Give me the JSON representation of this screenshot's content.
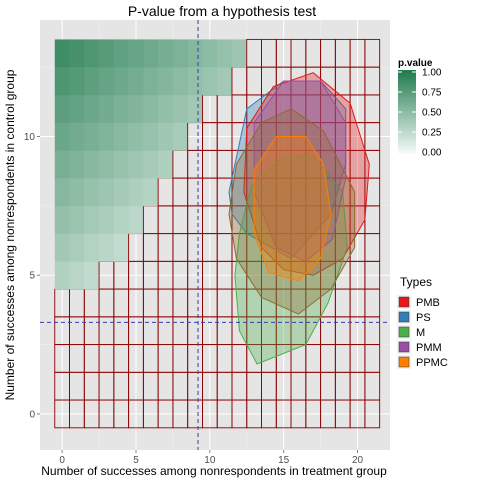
{
  "chart_data": {
    "type": "heatmap",
    "title": "P-value from a hypothesis test",
    "xlabel": "Number of successes among nonrespondents in treatment group",
    "ylabel": "Number of successes among nonrespondents in control group",
    "xlim": [
      -1.5,
      22.2
    ],
    "ylim": [
      -1.3,
      14.2
    ],
    "x_ticks": [
      0,
      5,
      10,
      15,
      20
    ],
    "y_ticks": [
      0,
      5,
      10
    ],
    "grid": true,
    "reference_lines": {
      "x": 9.2,
      "y": 3.3,
      "color": "#3b3bb4",
      "style": "dashed"
    },
    "colorbar": {
      "title": "p.value",
      "ticks": [
        "1.00",
        "0.75",
        "0.50",
        "0.25",
        "0.00"
      ],
      "low_color": "#f7fbf9",
      "high_color": "#1f7a4c",
      "placement": "right"
    },
    "legend": {
      "title": "Types",
      "placement": "right",
      "items": [
        {
          "label": "PMB",
          "color": "#e31a1c"
        },
        {
          "label": "PS",
          "color": "#377eb8"
        },
        {
          "label": "M",
          "color": "#4daf4a"
        },
        {
          "label": "PMM",
          "color": "#984ea3"
        },
        {
          "label": "PPMC",
          "color": "#ff7f00"
        }
      ]
    },
    "heatmap": {
      "cell_border_color": "#8b0000",
      "row_min_x": [
        {
          "y": 0,
          "x_min": 0
        },
        {
          "y": 1,
          "x_min": 0
        },
        {
          "y": 2,
          "x_min": 0
        },
        {
          "y": 3,
          "x_min": 0
        },
        {
          "y": 4,
          "x_min": 0
        },
        {
          "y": 5,
          "x_min": 3
        },
        {
          "y": 6,
          "x_min": 5
        },
        {
          "y": 7,
          "x_min": 6
        },
        {
          "y": 8,
          "x_min": 7
        },
        {
          "y": 9,
          "x_min": 8
        },
        {
          "y": 10,
          "x_min": 9
        },
        {
          "y": 11,
          "x_min": 10
        },
        {
          "y": 12,
          "x_min": 12
        },
        {
          "y": 13,
          "x_min": 13
        }
      ],
      "x_max": 21
    },
    "regions": [
      {
        "name": "PS",
        "color": "#377eb8",
        "polygon": [
          [
            11.3,
            8
          ],
          [
            12.5,
            11
          ],
          [
            15,
            12
          ],
          [
            17.5,
            12
          ],
          [
            19.2,
            11
          ],
          [
            19.2,
            9
          ],
          [
            18.2,
            7.2
          ],
          [
            15.5,
            5.6
          ],
          [
            12.5,
            6.5
          ],
          [
            11.5,
            7.2
          ]
        ]
      },
      {
        "name": "PMB",
        "color": "#e31a1c",
        "polygon": [
          [
            12.5,
            10.3
          ],
          [
            14.3,
            11.8
          ],
          [
            17,
            12.3
          ],
          [
            19.5,
            11.2
          ],
          [
            20.8,
            9
          ],
          [
            20.5,
            7
          ],
          [
            19,
            5.6
          ],
          [
            17,
            5
          ],
          [
            15,
            5.2
          ],
          [
            13.5,
            6
          ],
          [
            12.3,
            8
          ]
        ]
      },
      {
        "name": "M",
        "color": "#4daf4a",
        "polygon": [
          [
            12.8,
            8.2
          ],
          [
            15,
            9.3
          ],
          [
            17,
            9.3
          ],
          [
            19,
            8
          ],
          [
            19.3,
            6
          ],
          [
            18,
            4
          ],
          [
            16.5,
            2.5
          ],
          [
            13.2,
            1.8
          ],
          [
            12,
            3
          ],
          [
            11.7,
            5
          ],
          [
            12,
            6.5
          ]
        ]
      },
      {
        "name": "PMM",
        "color": "#984ea3",
        "polygon": [
          [
            13,
            10.5
          ],
          [
            15,
            12
          ],
          [
            17.5,
            12
          ],
          [
            19.2,
            10.5
          ],
          [
            19.2,
            8.5
          ],
          [
            18.3,
            6.3
          ],
          [
            16.5,
            5.5
          ],
          [
            14.5,
            6
          ],
          [
            13,
            8
          ]
        ]
      },
      {
        "name": "brown",
        "color": "#8c6a30",
        "polygon": [
          [
            11.8,
            9
          ],
          [
            13.5,
            10.5
          ],
          [
            15.5,
            11
          ],
          [
            17.7,
            10.2
          ],
          [
            19.8,
            8
          ],
          [
            19.8,
            6
          ],
          [
            18.2,
            4.5
          ],
          [
            16,
            3.6
          ],
          [
            13.5,
            4.2
          ],
          [
            11.8,
            5.6
          ],
          [
            11.3,
            7.2
          ]
        ]
      },
      {
        "name": "PPMC",
        "color": "#ff7f00",
        "polygon": [
          [
            13,
            8.8
          ],
          [
            14.5,
            10
          ],
          [
            16.5,
            10
          ],
          [
            17.7,
            9
          ],
          [
            18.2,
            7.2
          ],
          [
            17.5,
            5.6
          ],
          [
            16,
            4.8
          ],
          [
            14,
            5.1
          ],
          [
            13,
            6.5
          ]
        ]
      }
    ]
  }
}
